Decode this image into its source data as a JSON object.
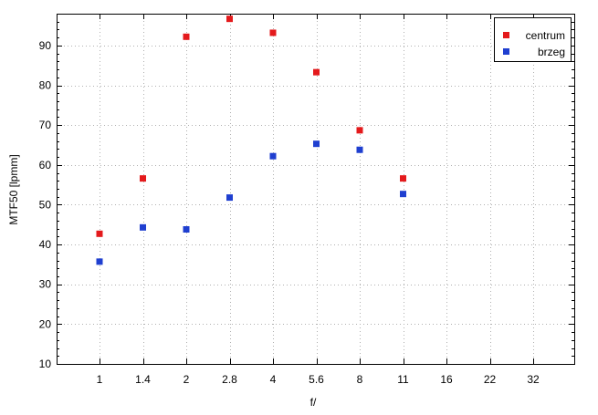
{
  "chart_data": {
    "type": "scatter",
    "title": "",
    "xlabel": "f/",
    "ylabel": "MTF50 [lpmm]",
    "categories": [
      "1",
      "1.4",
      "2",
      "2.8",
      "4",
      "5.6",
      "8",
      "11",
      "16",
      "22",
      "32"
    ],
    "ylim": [
      10,
      98
    ],
    "yticks": [
      10,
      20,
      30,
      40,
      50,
      60,
      70,
      80,
      90
    ],
    "grid": true,
    "legend_position": "top-right",
    "series": [
      {
        "name": "centrum",
        "color": "#e41a1c",
        "points": [
          {
            "x": "1",
            "y": 42.7
          },
          {
            "x": "1.4",
            "y": 56.6
          },
          {
            "x": "2",
            "y": 92.2
          },
          {
            "x": "2.8",
            "y": 96.7
          },
          {
            "x": "4",
            "y": 93.2
          },
          {
            "x": "5.6",
            "y": 83.3
          },
          {
            "x": "8",
            "y": 68.7
          },
          {
            "x": "11",
            "y": 56.6
          }
        ]
      },
      {
        "name": "brzeg",
        "color": "#1f3fd0",
        "points": [
          {
            "x": "1",
            "y": 35.7
          },
          {
            "x": "1.4",
            "y": 44.3
          },
          {
            "x": "2",
            "y": 43.8
          },
          {
            "x": "2.8",
            "y": 51.8
          },
          {
            "x": "4",
            "y": 62.2
          },
          {
            "x": "5.6",
            "y": 65.3
          },
          {
            "x": "8",
            "y": 63.8
          },
          {
            "x": "11",
            "y": 52.7
          }
        ]
      }
    ]
  }
}
